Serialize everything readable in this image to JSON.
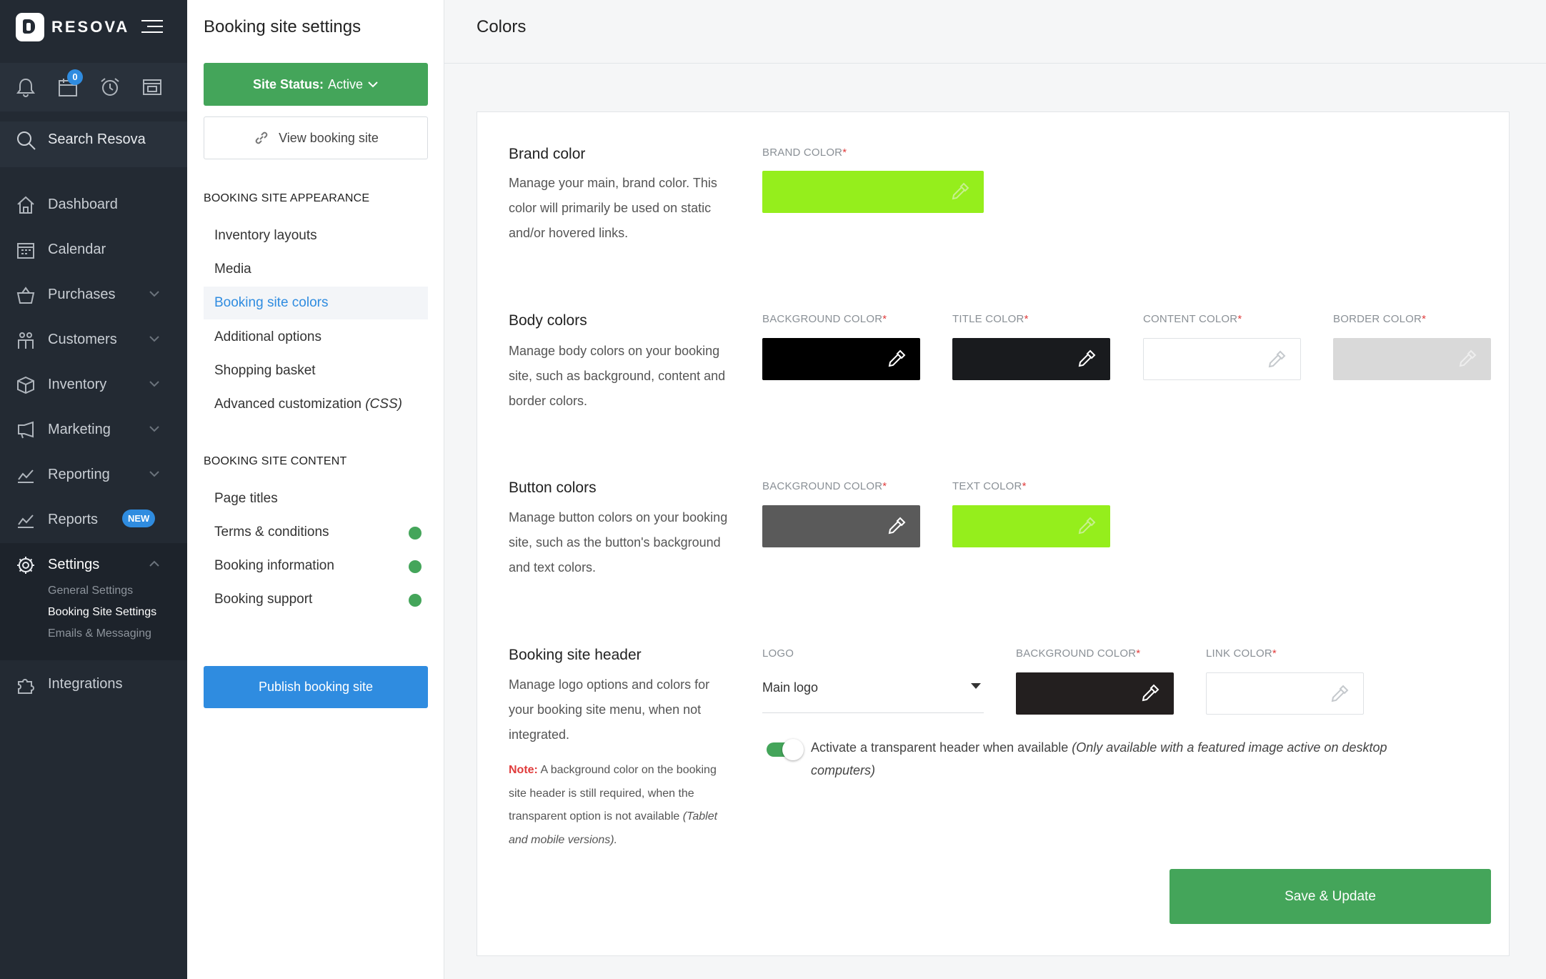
{
  "app": {
    "name": "RESOVA",
    "notification_count": "0"
  },
  "sidebar": {
    "search_label": "Search Resova",
    "items": [
      {
        "label": "Dashboard",
        "icon": "home-icon"
      },
      {
        "label": "Calendar",
        "icon": "calendar-icon"
      },
      {
        "label": "Purchases",
        "icon": "basket-icon"
      },
      {
        "label": "Customers",
        "icon": "customers-icon"
      },
      {
        "label": "Inventory",
        "icon": "box-icon"
      },
      {
        "label": "Marketing",
        "icon": "megaphone-icon"
      },
      {
        "label": "Reporting",
        "icon": "chart-icon"
      },
      {
        "label": "Reports",
        "icon": "chart-icon",
        "badge": "NEW"
      },
      {
        "label": "Settings",
        "icon": "gear-icon"
      },
      {
        "label": "Integrations",
        "icon": "puzzle-icon"
      }
    ],
    "settings_sub": [
      "General Settings",
      "Booking Site Settings",
      "Emails & Messaging"
    ]
  },
  "panel": {
    "title": "Booking site settings",
    "status_prefix": "Site Status:",
    "status_value": "Active",
    "view_site": "View booking site",
    "appearance_head": "BOOKING SITE APPEARANCE",
    "appearance_items": [
      "Inventory layouts",
      "Media",
      "Booking site colors",
      "Additional options",
      "Shopping basket",
      "Advanced customization",
      "(CSS)"
    ],
    "content_head": "BOOKING SITE CONTENT",
    "content_items": [
      "Page titles",
      "Terms & conditions",
      "Booking information",
      "Booking support"
    ],
    "publish": "Publish booking site"
  },
  "main": {
    "title": "Colors",
    "brand": {
      "title": "Brand color",
      "desc": "Manage your main, brand color. This color will primarily be used on static and/or hovered links.",
      "label": "BRAND COLOR",
      "color": "#95ee1c"
    },
    "body": {
      "title": "Body colors",
      "desc": "Manage body colors on your booking site, such as background, content and border colors.",
      "fields": [
        {
          "label": "BACKGROUND COLOR",
          "color": "#000000"
        },
        {
          "label": "TITLE COLOR",
          "color": "#191b1e"
        },
        {
          "label": "CONTENT COLOR",
          "color": "#ffffff"
        },
        {
          "label": "BORDER COLOR",
          "color": "#d9d9d9"
        }
      ]
    },
    "button": {
      "title": "Button colors",
      "desc": "Manage button colors on your booking site, such as the button's background and text colors.",
      "fields": [
        {
          "label": "BACKGROUND COLOR",
          "color": "#5a5a5a"
        },
        {
          "label": "TEXT COLOR",
          "color": "#95ee1c"
        }
      ]
    },
    "header": {
      "title": "Booking site header",
      "desc": "Manage logo options and colors for your booking site menu, when not integrated.",
      "note_label": "Note:",
      "note_text": "A background color on the booking site header is still required, when the transparent option is not available",
      "note_italic": "(Tablet and mobile versions).",
      "logo_label": "LOGO",
      "logo_value": "Main logo",
      "fields": [
        {
          "label": "BACKGROUND COLOR",
          "color": "#231f1f"
        },
        {
          "label": "LINK COLOR",
          "color": "#ffffff"
        }
      ],
      "toggle_text": "Activate a transparent header when available",
      "toggle_italic": "(Only available with a featured image active on desktop computers)",
      "toggle_on": true
    },
    "save": "Save & Update"
  }
}
